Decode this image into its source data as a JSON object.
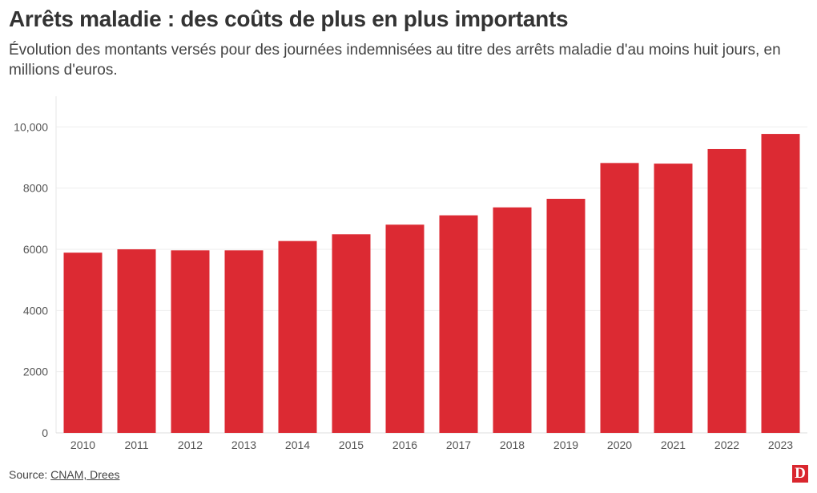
{
  "chart_data": {
    "type": "bar",
    "title": "Arrêts maladie : des coûts de plus en plus importants",
    "subtitle": "Évolution des montants versés pour des journées indemnisées au titre des arrêts maladie d'au moins huit jours, en millions d'euros.",
    "categories": [
      "2010",
      "2011",
      "2012",
      "2013",
      "2014",
      "2015",
      "2016",
      "2017",
      "2018",
      "2019",
      "2020",
      "2021",
      "2022",
      "2023"
    ],
    "values": [
      5890,
      6000,
      5965,
      5965,
      6270,
      6490,
      6805,
      7110,
      7370,
      7650,
      8820,
      8800,
      9275,
      9770
    ],
    "ylim": [
      0,
      11000
    ],
    "yticks": [
      0,
      2000,
      4000,
      6000,
      8000,
      10000
    ],
    "ytick_labels": [
      "0",
      "2000",
      "4000",
      "6000",
      "8000",
      "10,000"
    ],
    "xlabel": "",
    "ylabel": "",
    "grid": true,
    "bar_color": "#dc2a33"
  },
  "source": {
    "label": "Source: ",
    "link_text": "CNAM, Drees"
  },
  "logo": {
    "text": "D",
    "color": "#d9262e"
  }
}
